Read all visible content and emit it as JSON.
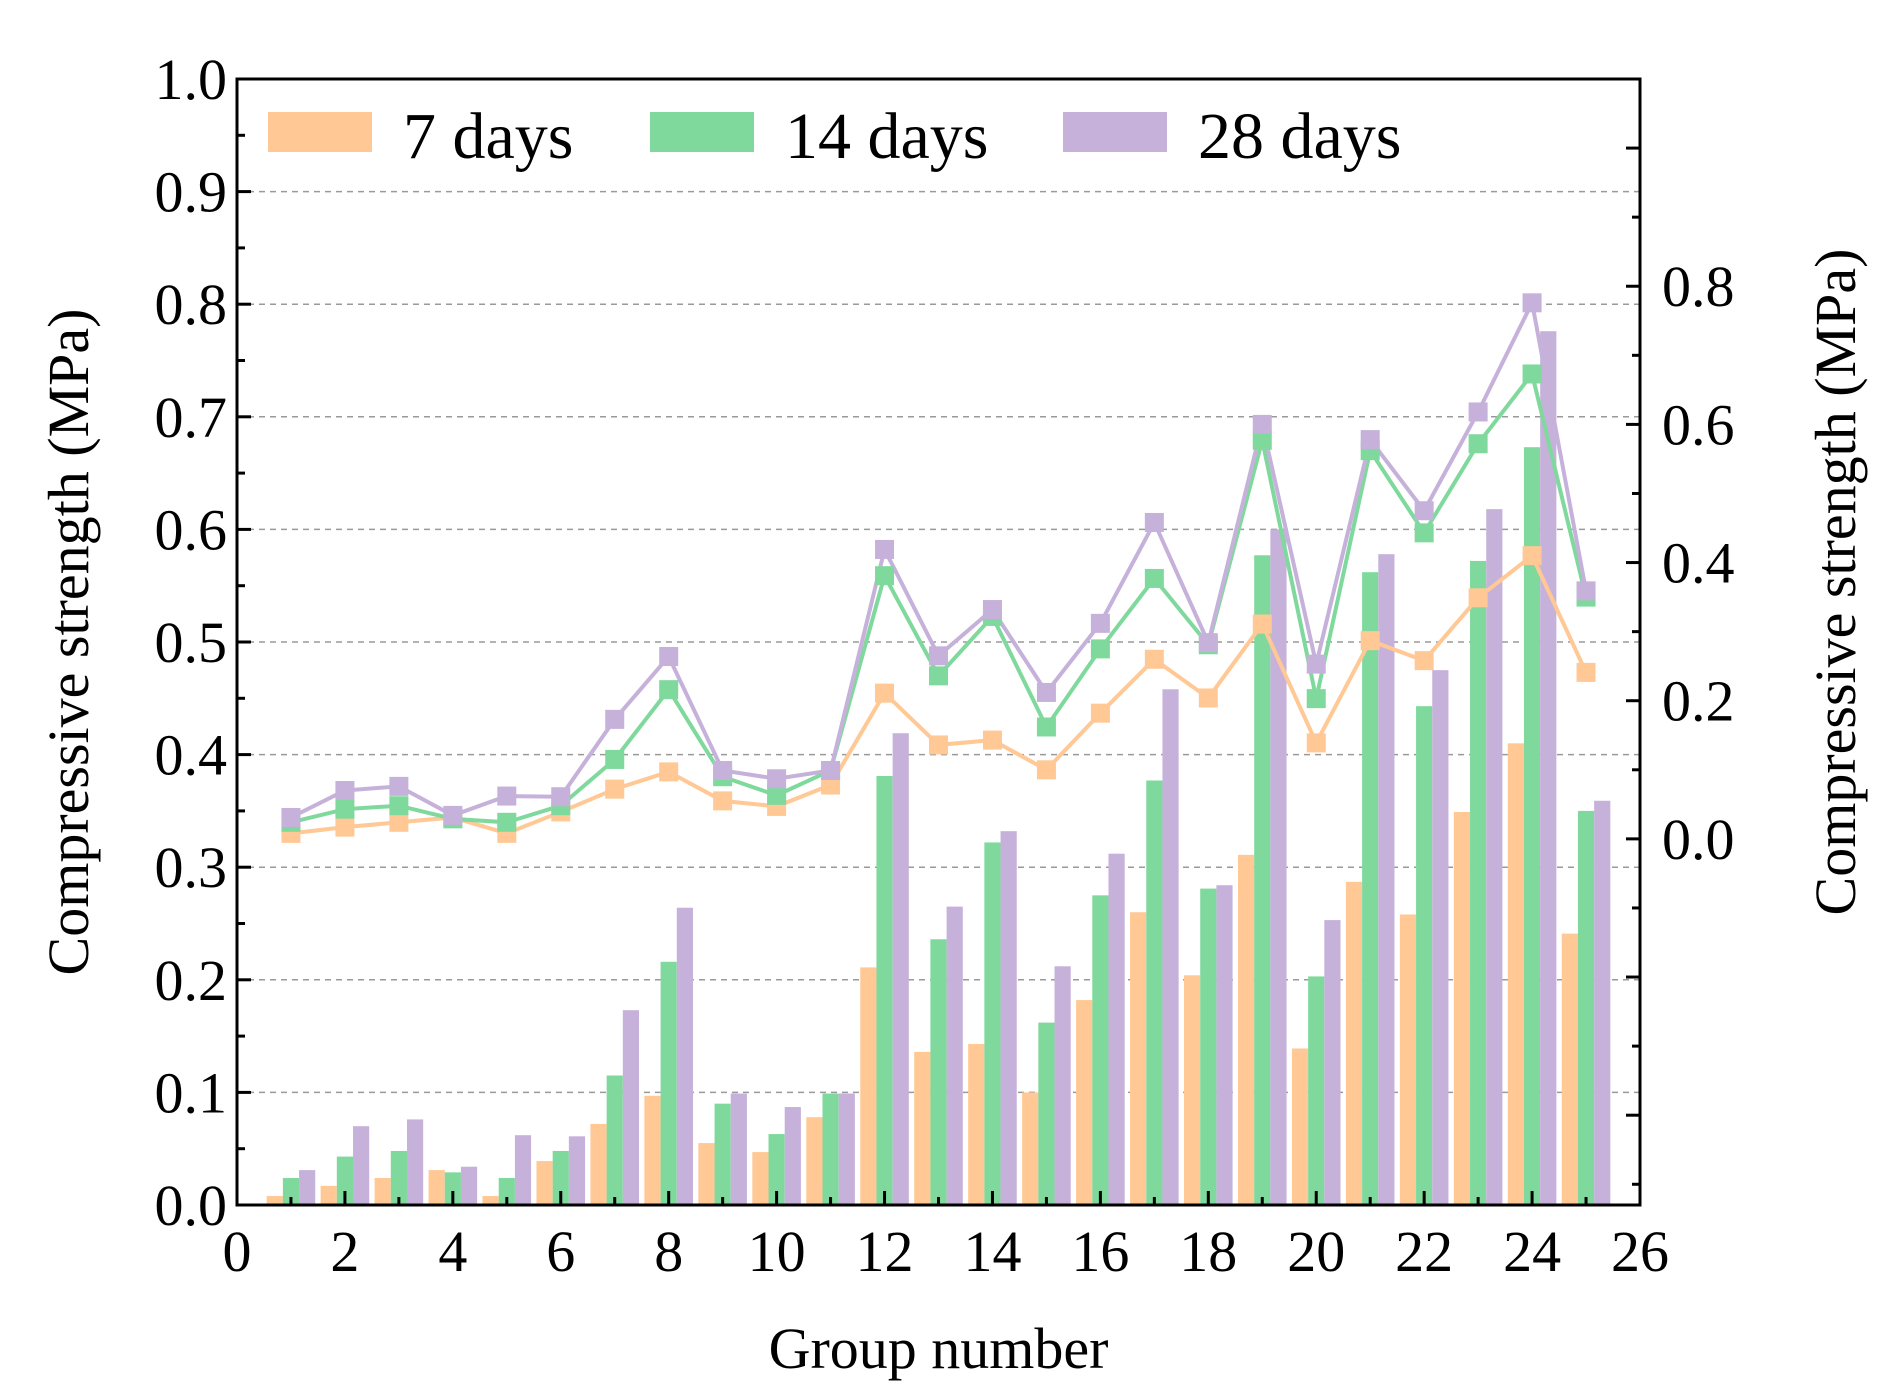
{
  "chart_data": {
    "type": "bar",
    "xlabel": "Group number",
    "ylabel": "Compressive strength (MPa)",
    "ylabel_right": "Compressive strength (MPa)",
    "x": [
      1,
      2,
      3,
      4,
      5,
      6,
      7,
      8,
      9,
      10,
      11,
      12,
      13,
      14,
      15,
      16,
      17,
      18,
      19,
      20,
      21,
      22,
      23,
      24,
      25
    ],
    "xlim": [
      0,
      26
    ],
    "xticks": [
      "0",
      "2",
      "4",
      "6",
      "8",
      "10",
      "12",
      "14",
      "16",
      "18",
      "20",
      "22",
      "24",
      "26"
    ],
    "ylim": [
      0.0,
      1.0
    ],
    "yticks": [
      "0.0",
      "0.1",
      "0.2",
      "0.3",
      "0.4",
      "0.5",
      "0.6",
      "0.7",
      "0.8",
      "0.9",
      "1.0"
    ],
    "ylim_right": [
      -0.53,
      1.1
    ],
    "yticks_right": [
      "0.0",
      "0.2",
      "0.4",
      "0.6",
      "0.8"
    ],
    "grid": "horizontal dashed",
    "legend_position": "top-left",
    "series": [
      {
        "name": "7 days",
        "color": "#FFC894",
        "values": [
          0.008,
          0.017,
          0.024,
          0.031,
          0.008,
          0.039,
          0.072,
          0.097,
          0.055,
          0.047,
          0.078,
          0.211,
          0.136,
          0.143,
          0.1,
          0.182,
          0.26,
          0.204,
          0.311,
          0.139,
          0.287,
          0.258,
          0.349,
          0.41,
          0.241
        ]
      },
      {
        "name": "14 days",
        "color": "#7FD99C",
        "values": [
          0.024,
          0.043,
          0.048,
          0.029,
          0.024,
          0.048,
          0.115,
          0.216,
          0.09,
          0.063,
          0.099,
          0.381,
          0.236,
          0.322,
          0.162,
          0.275,
          0.377,
          0.281,
          0.577,
          0.203,
          0.562,
          0.443,
          0.572,
          0.673,
          0.35
        ]
      },
      {
        "name": "28 days",
        "color": "#C6B1DA",
        "values": [
          0.031,
          0.07,
          0.076,
          0.034,
          0.062,
          0.061,
          0.173,
          0.264,
          0.099,
          0.087,
          0.099,
          0.419,
          0.265,
          0.332,
          0.212,
          0.312,
          0.458,
          0.284,
          0.6,
          0.253,
          0.578,
          0.475,
          0.618,
          0.776,
          0.359
        ]
      }
    ]
  }
}
